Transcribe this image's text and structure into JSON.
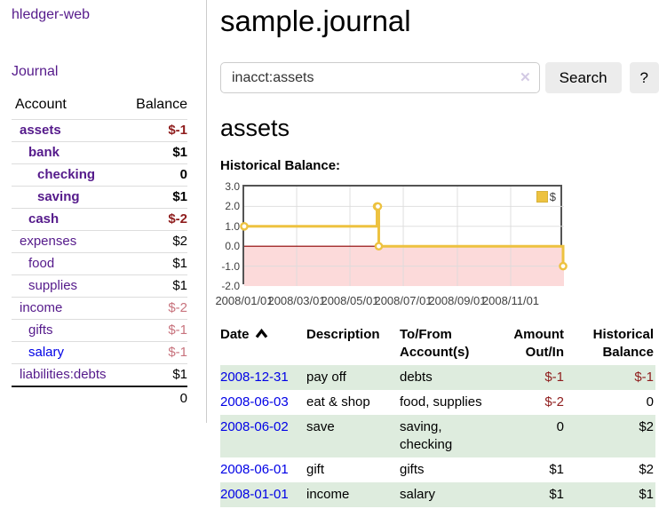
{
  "sidebar": {
    "app_title": "hledger-web",
    "journal_label": "Journal",
    "account_header": "Account",
    "balance_header": "Balance",
    "accounts": [
      {
        "label": "assets",
        "balance": "$-1",
        "level": 1,
        "bold": true,
        "balance_class": "negative"
      },
      {
        "label": "bank",
        "balance": "$1",
        "level": 2,
        "bold": true,
        "balance_class": ""
      },
      {
        "label": "checking",
        "balance": "0",
        "level": 3,
        "bold": true,
        "balance_class": ""
      },
      {
        "label": "saving",
        "balance": "$1",
        "level": 3,
        "bold": true,
        "balance_class": ""
      },
      {
        "label": "cash",
        "balance": "$-2",
        "level": 2,
        "bold": true,
        "balance_class": "negative"
      },
      {
        "label": "expenses",
        "balance": "$2",
        "level": 1,
        "bold": false,
        "balance_class": ""
      },
      {
        "label": "food",
        "balance": "$1",
        "level": 2,
        "bold": false,
        "balance_class": ""
      },
      {
        "label": "supplies",
        "balance": "$1",
        "level": 2,
        "bold": false,
        "balance_class": ""
      },
      {
        "label": "income",
        "balance": "$-2",
        "level": 1,
        "bold": false,
        "balance_class": "negative-muted"
      },
      {
        "label": "gifts",
        "balance": "$-1",
        "level": 2,
        "bold": false,
        "balance_class": "negative-muted"
      },
      {
        "label": "salary",
        "balance": "$-1",
        "level": 2,
        "bold": false,
        "balance_class": "negative-muted",
        "link_class": "blue"
      },
      {
        "label": "liabilities:debts",
        "balance": "$1",
        "level": 1,
        "bold": false,
        "balance_class": ""
      }
    ],
    "total": "0"
  },
  "main": {
    "title": "sample.journal",
    "search": {
      "value": "inacct:assets",
      "clear_icon": "✕",
      "button_label": "Search",
      "help_label": "?"
    },
    "account_heading": "assets",
    "chart_label": "Historical Balance:"
  },
  "chart_data": {
    "type": "line",
    "step": true,
    "title": "Historical Balance",
    "series": [
      {
        "name": "$",
        "color": "#edc240",
        "points": [
          [
            "2008-01-01",
            1
          ],
          [
            "2008-06-01",
            2
          ],
          [
            "2008-06-02",
            2
          ],
          [
            "2008-06-03",
            0
          ],
          [
            "2008-12-31",
            -1
          ]
        ]
      }
    ],
    "xdomain": [
      "2008-01-01",
      "2008-12-31"
    ],
    "ylim": [
      -2,
      3
    ],
    "yticks": [
      3.0,
      2.0,
      1.0,
      0.0,
      -1.0,
      -2.0
    ],
    "ytick_labels": [
      "3.0",
      "2.0",
      "1.0",
      "0.0",
      "-1.0",
      "-2.0"
    ],
    "xticks": [
      "2008/01/01",
      "2008/03/01",
      "2008/05/01",
      "2008/07/01",
      "2008/09/01",
      "2008/11/01"
    ],
    "grid": true,
    "legend_position": "top-right",
    "zero_line_color": "#8b0000",
    "negative_region_color": "#fcdada",
    "border_color": "#545454",
    "grid_color": "#dcdcdc"
  },
  "journal": {
    "columns": [
      {
        "label": "Date",
        "align": "left",
        "sorted": true
      },
      {
        "label": "Description",
        "align": "left"
      },
      {
        "label": "To/From Account(s)",
        "align": "left"
      },
      {
        "label": "Amount Out/In",
        "align": "right"
      },
      {
        "label": "Historical Balance",
        "align": "right"
      }
    ],
    "rows": [
      {
        "date": "2008-12-31",
        "description": "pay off",
        "accounts": "debts",
        "amount": "$-1",
        "amount_class": "negative",
        "balance": "$-1",
        "balance_class": "negative"
      },
      {
        "date": "2008-06-03",
        "description": "eat & shop",
        "accounts": "food, supplies",
        "amount": "$-2",
        "amount_class": "negative",
        "balance": "0",
        "balance_class": ""
      },
      {
        "date": "2008-06-02",
        "description": "save",
        "accounts": "saving, checking",
        "amount": "0",
        "amount_class": "",
        "balance": "$2",
        "balance_class": ""
      },
      {
        "date": "2008-06-01",
        "description": "gift",
        "accounts": "gifts",
        "amount": "$1",
        "amount_class": "",
        "balance": "$2",
        "balance_class": ""
      },
      {
        "date": "2008-01-01",
        "description": "income",
        "accounts": "salary",
        "amount": "$1",
        "amount_class": "",
        "balance": "$1",
        "balance_class": ""
      }
    ]
  },
  "colors": {
    "link_purple": "#551a8b",
    "link_blue": "#0000e6",
    "negative": "#8f1d1d",
    "negative_muted": "#c8737d",
    "row_stripe_green": "#deecde",
    "chart_gold": "#edc240",
    "chart_negative_pink": "#fcdada",
    "zero_line": "#8b0000",
    "button_gray": "#ececec"
  }
}
